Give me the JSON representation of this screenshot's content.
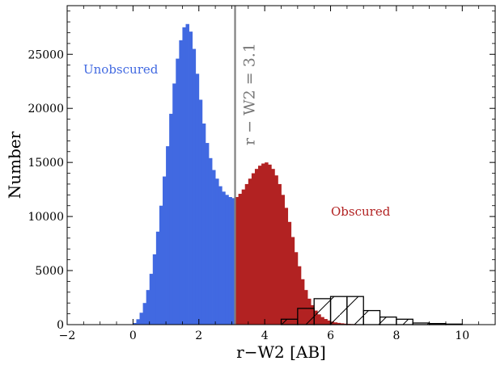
{
  "chart_data": {
    "type": "bar",
    "xlabel": "r−W2 [AB]",
    "ylabel": "Number",
    "xlim": [
      -2,
      11
    ],
    "ylim": [
      0,
      29500
    ],
    "xticks": [
      -2,
      0,
      2,
      4,
      6,
      8,
      10
    ],
    "xtick_labels": [
      "−2",
      "0",
      "2",
      "4",
      "6",
      "8",
      "10"
    ],
    "yticks": [
      0,
      5000,
      10000,
      15000,
      20000,
      25000
    ],
    "ytick_labels": [
      "0",
      "5000",
      "10000",
      "15000",
      "20000",
      "25000"
    ],
    "grid": false,
    "split_line": {
      "x": 3.1,
      "label": "r − W2 = 3.1",
      "color": "#808080"
    },
    "annotations": [
      {
        "text": "Unobscured",
        "color": "#4169E1"
      },
      {
        "text": "Obscured",
        "color": "#B22222"
      }
    ],
    "filled_histogram": {
      "bin_width": 0.1,
      "unobscured_color": "#4169E1",
      "obscured_color": "#B22222",
      "x": [
        0.05,
        0.15,
        0.25,
        0.35,
        0.45,
        0.55,
        0.65,
        0.75,
        0.85,
        0.95,
        1.05,
        1.15,
        1.25,
        1.35,
        1.45,
        1.55,
        1.65,
        1.75,
        1.85,
        1.95,
        2.05,
        2.15,
        2.25,
        2.35,
        2.45,
        2.55,
        2.65,
        2.75,
        2.85,
        2.95,
        3.05,
        3.15,
        3.25,
        3.35,
        3.45,
        3.55,
        3.65,
        3.75,
        3.85,
        3.95,
        4.05,
        4.15,
        4.25,
        4.35,
        4.45,
        4.55,
        4.65,
        4.75,
        4.85,
        4.95,
        5.05,
        5.15,
        5.25,
        5.35,
        5.45,
        5.55,
        5.65,
        5.75,
        5.85,
        5.95,
        6.05,
        6.15,
        6.25,
        6.35,
        6.45,
        6.55,
        6.65,
        6.75,
        6.85,
        6.95,
        7.05,
        7.15,
        7.25,
        7.35,
        7.45,
        7.55,
        7.65,
        7.75,
        7.85,
        7.95
      ],
      "values": [
        150,
        500,
        1100,
        2000,
        3200,
        4700,
        6500,
        8600,
        11000,
        13700,
        16500,
        19500,
        22300,
        24600,
        26300,
        27500,
        27800,
        27100,
        25500,
        23200,
        20800,
        18600,
        16800,
        15400,
        14300,
        13500,
        12800,
        12300,
        12000,
        11800,
        11700,
        11800,
        12100,
        12500,
        13000,
        13500,
        14000,
        14400,
        14700,
        14900,
        15000,
        14800,
        14400,
        13800,
        13000,
        12000,
        10800,
        9500,
        8100,
        6700,
        5400,
        4200,
        3200,
        2400,
        1800,
        1300,
        950,
        700,
        520,
        380,
        280,
        210,
        160,
        120,
        90,
        70,
        55,
        45,
        35,
        28,
        22,
        18,
        15,
        12,
        10,
        8,
        6,
        5,
        4,
        3
      ]
    },
    "outline_histogram": {
      "color": "#000000",
      "hatch": "/",
      "bins": [
        {
          "x0": 4.5,
          "x1": 5.0,
          "value": 500
        },
        {
          "x0": 5.0,
          "x1": 5.5,
          "value": 1500
        },
        {
          "x0": 5.5,
          "x1": 6.0,
          "value": 2400
        },
        {
          "x0": 6.0,
          "x1": 6.5,
          "value": 2600
        },
        {
          "x0": 6.5,
          "x1": 7.0,
          "value": 2600
        },
        {
          "x0": 7.0,
          "x1": 7.5,
          "value": 1300
        },
        {
          "x0": 7.5,
          "x1": 8.0,
          "value": 700
        },
        {
          "x0": 8.0,
          "x1": 8.5,
          "value": 500
        },
        {
          "x0": 8.5,
          "x1": 9.0,
          "value": 150
        },
        {
          "x0": 9.0,
          "x1": 9.5,
          "value": 100
        },
        {
          "x0": 9.5,
          "x1": 10.0,
          "value": 50
        }
      ]
    }
  }
}
